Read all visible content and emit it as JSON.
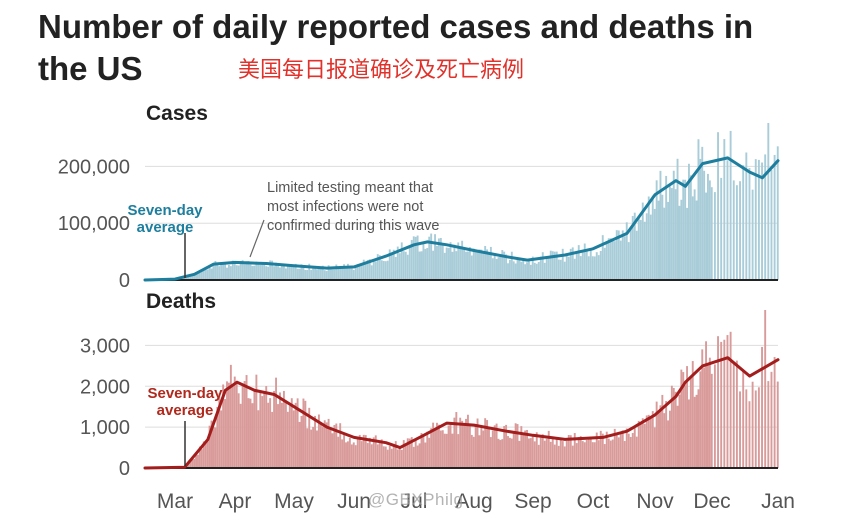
{
  "header": {
    "title": "Number of daily reported cases and deaths in the US",
    "subtitle_cn": "美国每日报道确诊及死亡病例"
  },
  "watermark": "@GBXPhilg",
  "colors": {
    "cases_bar": "#a9ccd9",
    "cases_line": "#1d7e9e",
    "cases_label": "#1d7e9e",
    "deaths_bar": "#d99a9a",
    "deaths_line": "#a31d1d",
    "deaths_label": "#b0291d",
    "grid": "#dddddd",
    "axis": "#222222",
    "tick_text": "#555555",
    "annotation": "#555555"
  },
  "chart_data": [
    {
      "type": "bar",
      "panel": "Cases",
      "title": "Cases",
      "x_range": [
        "2020-03-01",
        "2021-01-05"
      ],
      "ylim": [
        0,
        250000
      ],
      "yticks": [
        0,
        100000,
        200000
      ],
      "ytick_labels": [
        "0",
        "100,000",
        "200,000"
      ],
      "grid": true,
      "series_label": "Seven-day average",
      "annotation": "Limited testing meant that most infections were not confirmed during this wave",
      "seven_day_average": [
        {
          "date": "2020-03-01",
          "value": 0
        },
        {
          "date": "2020-03-15",
          "value": 1500
        },
        {
          "date": "2020-03-25",
          "value": 10000
        },
        {
          "date": "2020-04-04",
          "value": 28000
        },
        {
          "date": "2020-04-15",
          "value": 31000
        },
        {
          "date": "2020-05-01",
          "value": 29000
        },
        {
          "date": "2020-05-15",
          "value": 25000
        },
        {
          "date": "2020-06-01",
          "value": 21000
        },
        {
          "date": "2020-06-15",
          "value": 23000
        },
        {
          "date": "2020-07-01",
          "value": 42000
        },
        {
          "date": "2020-07-15",
          "value": 62000
        },
        {
          "date": "2020-07-22",
          "value": 67000
        },
        {
          "date": "2020-08-01",
          "value": 62000
        },
        {
          "date": "2020-08-15",
          "value": 52000
        },
        {
          "date": "2020-09-01",
          "value": 41000
        },
        {
          "date": "2020-09-12",
          "value": 35000
        },
        {
          "date": "2020-10-01",
          "value": 44000
        },
        {
          "date": "2020-10-15",
          "value": 55000
        },
        {
          "date": "2020-11-01",
          "value": 82000
        },
        {
          "date": "2020-11-15",
          "value": 150000
        },
        {
          "date": "2020-11-26",
          "value": 175000
        },
        {
          "date": "2020-12-01",
          "value": 165000
        },
        {
          "date": "2020-12-10",
          "value": 205000
        },
        {
          "date": "2020-12-20",
          "value": 215000
        },
        {
          "date": "2020-12-27",
          "value": 190000
        },
        {
          "date": "2020-12-31",
          "value": 180000
        },
        {
          "date": "2021-01-05",
          "value": 210000
        }
      ],
      "daily_peak": {
        "date": "2021-01-02",
        "value": 280000
      }
    },
    {
      "type": "bar",
      "panel": "Deaths",
      "title": "Deaths",
      "x_range": [
        "2020-03-01",
        "2021-01-05"
      ],
      "ylim": [
        0,
        3500
      ],
      "yticks": [
        0,
        1000,
        2000,
        3000
      ],
      "ytick_labels": [
        "0",
        "1,000",
        "2,000",
        "3,000"
      ],
      "grid": true,
      "series_label": "Seven-day average",
      "seven_day_average": [
        {
          "date": "2020-03-01",
          "value": 0
        },
        {
          "date": "2020-03-20",
          "value": 20
        },
        {
          "date": "2020-04-01",
          "value": 700
        },
        {
          "date": "2020-04-10",
          "value": 1900
        },
        {
          "date": "2020-04-16",
          "value": 2100
        },
        {
          "date": "2020-04-25",
          "value": 1900
        },
        {
          "date": "2020-05-05",
          "value": 1800
        },
        {
          "date": "2020-05-15",
          "value": 1500
        },
        {
          "date": "2020-06-01",
          "value": 1000
        },
        {
          "date": "2020-06-15",
          "value": 750
        },
        {
          "date": "2020-07-01",
          "value": 620
        },
        {
          "date": "2020-07-08",
          "value": 500
        },
        {
          "date": "2020-07-20",
          "value": 800
        },
        {
          "date": "2020-08-01",
          "value": 1100
        },
        {
          "date": "2020-08-15",
          "value": 1050
        },
        {
          "date": "2020-09-01",
          "value": 900
        },
        {
          "date": "2020-09-15",
          "value": 800
        },
        {
          "date": "2020-10-01",
          "value": 700
        },
        {
          "date": "2020-10-20",
          "value": 750
        },
        {
          "date": "2020-11-01",
          "value": 900
        },
        {
          "date": "2020-11-15",
          "value": 1300
        },
        {
          "date": "2020-11-26",
          "value": 1750
        },
        {
          "date": "2020-12-01",
          "value": 2100
        },
        {
          "date": "2020-12-10",
          "value": 2500
        },
        {
          "date": "2020-12-20",
          "value": 2700
        },
        {
          "date": "2020-12-27",
          "value": 2250
        },
        {
          "date": "2021-01-05",
          "value": 2650
        }
      ],
      "daily_peak": {
        "date": "2021-01-01",
        "value": 3900
      }
    }
  ],
  "x_axis": {
    "ticks": [
      {
        "label": "Mar",
        "date": "2020-03-15"
      },
      {
        "label": "Apr",
        "date": "2020-04-15"
      },
      {
        "label": "May",
        "date": "2020-05-15"
      },
      {
        "label": "Jun",
        "date": "2020-06-15"
      },
      {
        "label": "Jul",
        "date": "2020-07-15"
      },
      {
        "label": "Aug",
        "date": "2020-08-15"
      },
      {
        "label": "Sep",
        "date": "2020-09-15"
      },
      {
        "label": "Oct",
        "date": "2020-10-15"
      },
      {
        "label": "Nov",
        "date": "2020-11-15"
      },
      {
        "label": "Dec",
        "date": "2020-12-15"
      },
      {
        "label": "Jan",
        "date": "2021-01-15"
      }
    ]
  }
}
